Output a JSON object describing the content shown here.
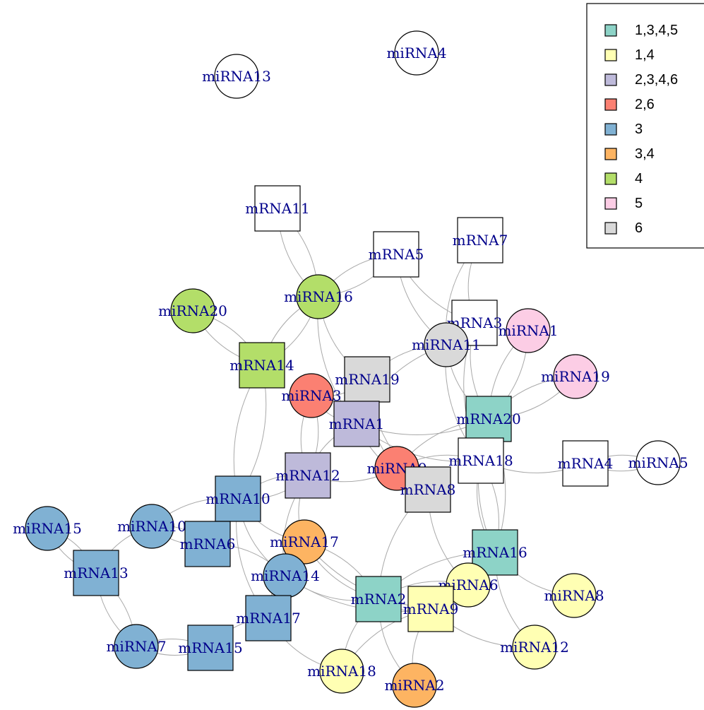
{
  "legend": {
    "items": [
      {
        "label": "1,3,4,5",
        "color": "#8dd3c7"
      },
      {
        "label": "1,4",
        "color": "#ffffb3"
      },
      {
        "label": "2,3,4,6",
        "color": "#bebada"
      },
      {
        "label": "2,6",
        "color": "#fb8072"
      },
      {
        "label": "3",
        "color": "#80b1d3"
      },
      {
        "label": "3,4",
        "color": "#fdb462"
      },
      {
        "label": "4",
        "color": "#b3de69"
      },
      {
        "label": "5",
        "color": "#fccde5"
      },
      {
        "label": "6",
        "color": "#d9d9d9"
      }
    ]
  },
  "nodes": [
    {
      "id": "miRNA13",
      "label": "miRNA13",
      "shape": "circle",
      "color": "#ffffff"
    },
    {
      "id": "miRNA4",
      "label": "miRNA4",
      "shape": "circle",
      "color": "#ffffff"
    },
    {
      "id": "mRNA11",
      "label": "mRNA11",
      "shape": "square",
      "color": "#ffffff"
    },
    {
      "id": "mRNA7",
      "label": "mRNA7",
      "shape": "square",
      "color": "#ffffff"
    },
    {
      "id": "mRNA5",
      "label": "mRNA5",
      "shape": "square",
      "color": "#ffffff"
    },
    {
      "id": "miRNA16",
      "label": "miRNA16",
      "shape": "circle",
      "color": "#b3de69"
    },
    {
      "id": "miRNA20",
      "label": "miRNA20",
      "shape": "circle",
      "color": "#b3de69"
    },
    {
      "id": "mRNA3",
      "label": "mRNA3",
      "shape": "square",
      "color": "#ffffff"
    },
    {
      "id": "miRNA1",
      "label": "miRNA1",
      "shape": "circle",
      "color": "#fccde5"
    },
    {
      "id": "miRNA11",
      "label": "miRNA11",
      "shape": "circle",
      "color": "#d9d9d9"
    },
    {
      "id": "mRNA14",
      "label": "mRNA14",
      "shape": "square",
      "color": "#b3de69"
    },
    {
      "id": "mRNA19",
      "label": "mRNA19",
      "shape": "square",
      "color": "#d9d9d9"
    },
    {
      "id": "miRNA19",
      "label": "miRNA19",
      "shape": "circle",
      "color": "#fccde5"
    },
    {
      "id": "miRNA3",
      "label": "miRNA3",
      "shape": "circle",
      "color": "#fb8072"
    },
    {
      "id": "mRNA1",
      "label": "mRNA1",
      "shape": "square",
      "color": "#bebada"
    },
    {
      "id": "mRNA20",
      "label": "mRNA20",
      "shape": "square",
      "color": "#8dd3c7"
    },
    {
      "id": "mRNA18",
      "label": "mRNA18",
      "shape": "square",
      "color": "#ffffff"
    },
    {
      "id": "mRNA4",
      "label": "mRNA4",
      "shape": "square",
      "color": "#ffffff"
    },
    {
      "id": "miRNA5",
      "label": "miRNA5",
      "shape": "circle",
      "color": "#ffffff"
    },
    {
      "id": "mRNA12",
      "label": "mRNA12",
      "shape": "square",
      "color": "#bebada"
    },
    {
      "id": "miRNA9",
      "label": "miRNA9",
      "shape": "circle",
      "color": "#fb8072"
    },
    {
      "id": "mRNA8",
      "label": "mRNA8",
      "shape": "square",
      "color": "#d9d9d9"
    },
    {
      "id": "mRNA10",
      "label": "mRNA10",
      "shape": "square",
      "color": "#80b1d3"
    },
    {
      "id": "miRNA15",
      "label": "miRNA15",
      "shape": "circle",
      "color": "#80b1d3"
    },
    {
      "id": "miRNA10",
      "label": "miRNA10",
      "shape": "circle",
      "color": "#80b1d3"
    },
    {
      "id": "mRNA6",
      "label": "mRNA6",
      "shape": "square",
      "color": "#80b1d3"
    },
    {
      "id": "miRNA17",
      "label": "miRNA17",
      "shape": "circle",
      "color": "#fdb462"
    },
    {
      "id": "mRNA16",
      "label": "mRNA16",
      "shape": "square",
      "color": "#8dd3c7"
    },
    {
      "id": "mRNA13",
      "label": "mRNA13",
      "shape": "square",
      "color": "#80b1d3"
    },
    {
      "id": "miRNA14",
      "label": "miRNA14",
      "shape": "circle",
      "color": "#80b1d3"
    },
    {
      "id": "miRNA6",
      "label": "miRNA6",
      "shape": "circle",
      "color": "#ffffb3"
    },
    {
      "id": "miRNA8",
      "label": "miRNA8",
      "shape": "circle",
      "color": "#ffffb3"
    },
    {
      "id": "mRNA2",
      "label": "mRNA2",
      "shape": "square",
      "color": "#8dd3c7"
    },
    {
      "id": "mRNA9",
      "label": "mRNA9",
      "shape": "square",
      "color": "#ffffb3"
    },
    {
      "id": "mRNA17",
      "label": "mRNA17",
      "shape": "square",
      "color": "#80b1d3"
    },
    {
      "id": "miRNA7",
      "label": "miRNA7",
      "shape": "circle",
      "color": "#80b1d3"
    },
    {
      "id": "mRNA15",
      "label": "mRNA15",
      "shape": "square",
      "color": "#80b1d3"
    },
    {
      "id": "miRNA12",
      "label": "miRNA12",
      "shape": "circle",
      "color": "#ffffb3"
    },
    {
      "id": "miRNA18",
      "label": "miRNA18",
      "shape": "circle",
      "color": "#ffffb3"
    },
    {
      "id": "miRNA2",
      "label": "miRNA2",
      "shape": "circle",
      "color": "#fdb462"
    }
  ],
  "edges": [
    [
      "mRNA11",
      "miRNA16"
    ],
    [
      "mRNA11",
      "miRNA16"
    ],
    [
      "mRNA5",
      "miRNA16"
    ],
    [
      "mRNA5",
      "miRNA16"
    ],
    [
      "mRNA5",
      "mRNA3"
    ],
    [
      "mRNA5",
      "miRNA11"
    ],
    [
      "mRNA7",
      "mRNA3"
    ],
    [
      "mRNA7",
      "miRNA11"
    ],
    [
      "miRNA16",
      "mRNA14"
    ],
    [
      "miRNA16",
      "mRNA14"
    ],
    [
      "miRNA16",
      "mRNA19"
    ],
    [
      "miRNA16",
      "mRNA1"
    ],
    [
      "miRNA20",
      "mRNA14"
    ],
    [
      "miRNA20",
      "mRNA14"
    ],
    [
      "mRNA3",
      "mRNA20"
    ],
    [
      "mRNA3",
      "mRNA18"
    ],
    [
      "miRNA1",
      "mRNA20"
    ],
    [
      "miRNA1",
      "mRNA20"
    ],
    [
      "miRNA19",
      "mRNA20"
    ],
    [
      "miRNA19",
      "mRNA20"
    ],
    [
      "miRNA11",
      "mRNA19"
    ],
    [
      "miRNA11",
      "mRNA1"
    ],
    [
      "miRNA11",
      "mRNA20"
    ],
    [
      "miRNA11",
      "mRNA18"
    ],
    [
      "mRNA14",
      "mRNA10"
    ],
    [
      "mRNA14",
      "mRNA10"
    ],
    [
      "miRNA3",
      "mRNA19"
    ],
    [
      "miRNA3",
      "mRNA1"
    ],
    [
      "miRNA3",
      "mRNA12"
    ],
    [
      "miRNA3",
      "mRNA12"
    ],
    [
      "mRNA19",
      "miRNA9"
    ],
    [
      "mRNA19",
      "mRNA8"
    ],
    [
      "mRNA1",
      "mRNA20"
    ],
    [
      "mRNA1",
      "mRNA18"
    ],
    [
      "mRNA1",
      "mRNA12"
    ],
    [
      "mRNA1",
      "mRNA8"
    ],
    [
      "mRNA20",
      "mRNA18"
    ],
    [
      "mRNA20",
      "mRNA16"
    ],
    [
      "mRNA20",
      "mRNA16"
    ],
    [
      "mRNA20",
      "miRNA9"
    ],
    [
      "mRNA18",
      "mRNA4"
    ],
    [
      "mRNA18",
      "miRNA9"
    ],
    [
      "mRNA18",
      "mRNA16"
    ],
    [
      "mRNA18",
      "mRNA16"
    ],
    [
      "mRNA4",
      "miRNA5"
    ],
    [
      "mRNA4",
      "miRNA5"
    ],
    [
      "mRNA12",
      "mRNA10"
    ],
    [
      "mRNA12",
      "mRNA10"
    ],
    [
      "mRNA12",
      "miRNA17"
    ],
    [
      "mRNA12",
      "miRNA9"
    ],
    [
      "mRNA12",
      "miRNA14"
    ],
    [
      "miRNA9",
      "mRNA8"
    ],
    [
      "mRNA8",
      "miRNA6"
    ],
    [
      "mRNA8",
      "mRNA2"
    ],
    [
      "mRNA10",
      "miRNA10"
    ],
    [
      "mRNA10",
      "mRNA6"
    ],
    [
      "mRNA10",
      "miRNA17"
    ],
    [
      "mRNA10",
      "miRNA14"
    ],
    [
      "mRNA10",
      "mRNA17"
    ],
    [
      "miRNA15",
      "mRNA13"
    ],
    [
      "miRNA15",
      "mRNA13"
    ],
    [
      "miRNA10",
      "mRNA13"
    ],
    [
      "miRNA10",
      "mRNA6"
    ],
    [
      "miRNA10",
      "mRNA6"
    ],
    [
      "miRNA17",
      "mRNA2"
    ],
    [
      "miRNA17",
      "mRNA2"
    ],
    [
      "miRNA17",
      "mRNA9"
    ],
    [
      "miRNA17",
      "mRNA17"
    ],
    [
      "mRNA13",
      "miRNA7"
    ],
    [
      "mRNA13",
      "miRNA7"
    ],
    [
      "miRNA14",
      "mRNA17"
    ],
    [
      "miRNA14",
      "mRNA2"
    ],
    [
      "miRNA14",
      "mRNA9"
    ],
    [
      "miRNA14",
      "mRNA6"
    ],
    [
      "mRNA16",
      "miRNA6"
    ],
    [
      "mRNA16",
      "miRNA8"
    ],
    [
      "mRNA16",
      "miRNA12"
    ],
    [
      "mRNA16",
      "mRNA2"
    ],
    [
      "mRNA16",
      "mRNA9"
    ],
    [
      "miRNA6",
      "mRNA2"
    ],
    [
      "miRNA6",
      "mRNA9"
    ],
    [
      "mRNA2",
      "miRNA18"
    ],
    [
      "mRNA2",
      "miRNA2"
    ],
    [
      "mRNA2",
      "mRNA9"
    ],
    [
      "mRNA9",
      "miRNA2"
    ],
    [
      "mRNA9",
      "miRNA18"
    ],
    [
      "mRNA9",
      "miRNA12"
    ],
    [
      "mRNA17",
      "mRNA15"
    ],
    [
      "mRNA17",
      "miRNA18"
    ],
    [
      "miRNA7",
      "mRNA15"
    ],
    [
      "miRNA7",
      "mRNA15"
    ]
  ]
}
